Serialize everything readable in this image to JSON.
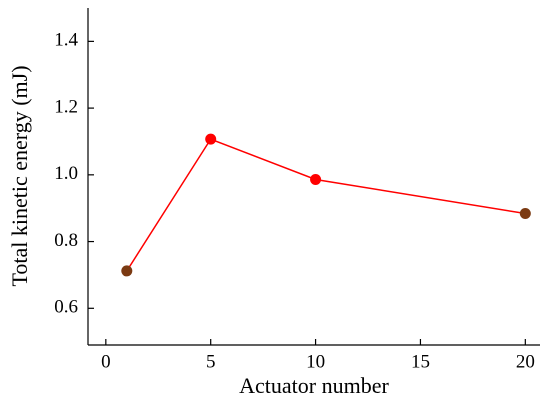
{
  "chart_data": {
    "type": "line",
    "x_label": "Actuator number",
    "y_label": "Total kinetic energy  (mJ)",
    "x": [
      1,
      5,
      10,
      20
    ],
    "series": [
      {
        "color": "#ff0000",
        "values": [
          0.712,
          1.107,
          0.986,
          0.884
        ]
      }
    ],
    "marker_colors": [
      "#7b3a12",
      "#ff0000",
      "#ff0000",
      "#7b3a12"
    ],
    "xlim": [
      -0.85,
      20.7
    ],
    "xticks": [
      0,
      5,
      10,
      15,
      20
    ],
    "ylim": [
      0.49,
      1.5
    ],
    "yticks": [
      0.6,
      0.8,
      {
        "value": 1,
        "label": "1.0"
      },
      1.2,
      1.4
    ]
  }
}
